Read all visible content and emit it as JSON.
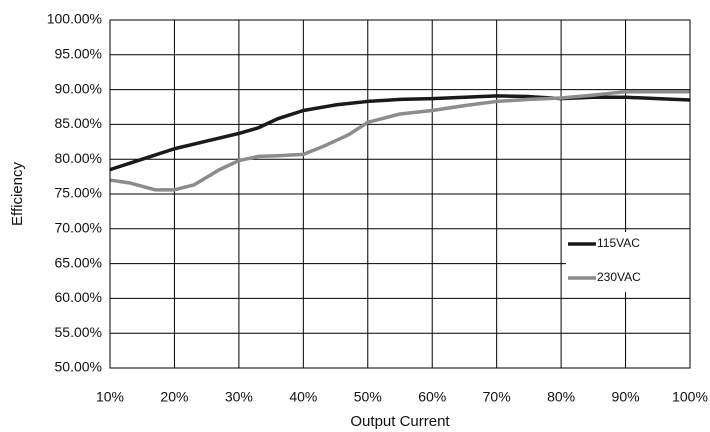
{
  "chart_data": {
    "type": "line",
    "y_label": "Efficiency",
    "x_label": "Output Current",
    "xlim": [
      10,
      100
    ],
    "xticks": [
      {
        "value": 10,
        "label": "10%"
      },
      {
        "value": 20,
        "label": "20%"
      },
      {
        "value": 30,
        "label": "30%"
      },
      {
        "value": 40,
        "label": "40%"
      },
      {
        "value": 50,
        "label": "50%"
      },
      {
        "value": 60,
        "label": "60%"
      },
      {
        "value": 70,
        "label": "70%"
      },
      {
        "value": 80,
        "label": "80%"
      },
      {
        "value": 90,
        "label": "90%"
      },
      {
        "value": 100,
        "label": "100%"
      }
    ],
    "ylim": [
      50,
      100
    ],
    "yticks": [
      {
        "value": 50,
        "label": "50.00%"
      },
      {
        "value": 55,
        "label": "55.00%"
      },
      {
        "value": 60,
        "label": "60.00%"
      },
      {
        "value": 65,
        "label": "65.00%"
      },
      {
        "value": 70,
        "label": "70.00%"
      },
      {
        "value": 75,
        "label": "75.00%"
      },
      {
        "value": 80,
        "label": "80.00%"
      },
      {
        "value": 85,
        "label": "85.00%"
      },
      {
        "value": 90,
        "label": "90.00%"
      },
      {
        "value": 95,
        "label": "95.00%"
      },
      {
        "value": 100,
        "label": "100.00%"
      }
    ],
    "grid": true,
    "legend": "right",
    "series": [
      {
        "name": "115VAC",
        "color": "#1a1a1a",
        "x": [
          10,
          15,
          20,
          25,
          30,
          33,
          36,
          40,
          45,
          50,
          55,
          60,
          65,
          70,
          75,
          80,
          85,
          90,
          95,
          100
        ],
        "values": [
          78.5,
          80.0,
          81.5,
          82.6,
          83.7,
          84.5,
          85.8,
          87.0,
          87.8,
          88.3,
          88.6,
          88.7,
          88.9,
          89.1,
          89.0,
          88.7,
          88.9,
          88.9,
          88.7,
          88.5
        ]
      },
      {
        "name": "230VAC",
        "color": "#8c8c8c",
        "x": [
          10,
          13,
          17,
          20,
          23,
          27,
          30,
          33,
          36,
          40,
          43,
          47,
          50,
          55,
          60,
          65,
          70,
          75,
          80,
          85,
          90,
          95,
          100
        ],
        "values": [
          77.0,
          76.6,
          75.6,
          75.6,
          76.3,
          78.5,
          79.8,
          80.4,
          80.5,
          80.7,
          81.8,
          83.5,
          85.3,
          86.5,
          87.0,
          87.7,
          88.3,
          88.6,
          88.8,
          89.2,
          89.7,
          89.7,
          89.7
        ]
      }
    ]
  }
}
